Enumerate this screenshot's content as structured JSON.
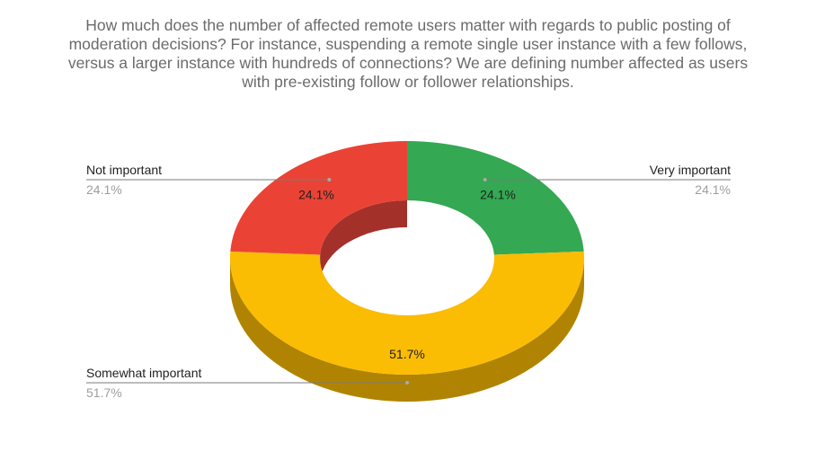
{
  "chart_data": {
    "type": "pie",
    "style": "3d-donut",
    "title_lines": [
      "How much does the number of affected remote users matter with regards to public posting of",
      "moderation decisions? For instance, suspending a remote single user instance with a few follows,",
      "versus a larger instance with hundreds of connections? We are defining number affected as users",
      "with pre-existing follow or follower relationships."
    ],
    "categories": [
      "Very important",
      "Somewhat important",
      "Not important"
    ],
    "values": [
      24.1,
      51.7,
      24.1
    ],
    "labels": [
      "24.1%",
      "51.7%",
      "24.1%"
    ],
    "colors": [
      "#34a853",
      "#fbbc04",
      "#ea4335"
    ],
    "side_colors": [
      "#25753a",
      "#b08402",
      "#a4302a"
    ],
    "title_color": "#6b6b6b",
    "legend_value_color": "#9e9e9e",
    "leader_line_color": "#7a7a7a"
  }
}
